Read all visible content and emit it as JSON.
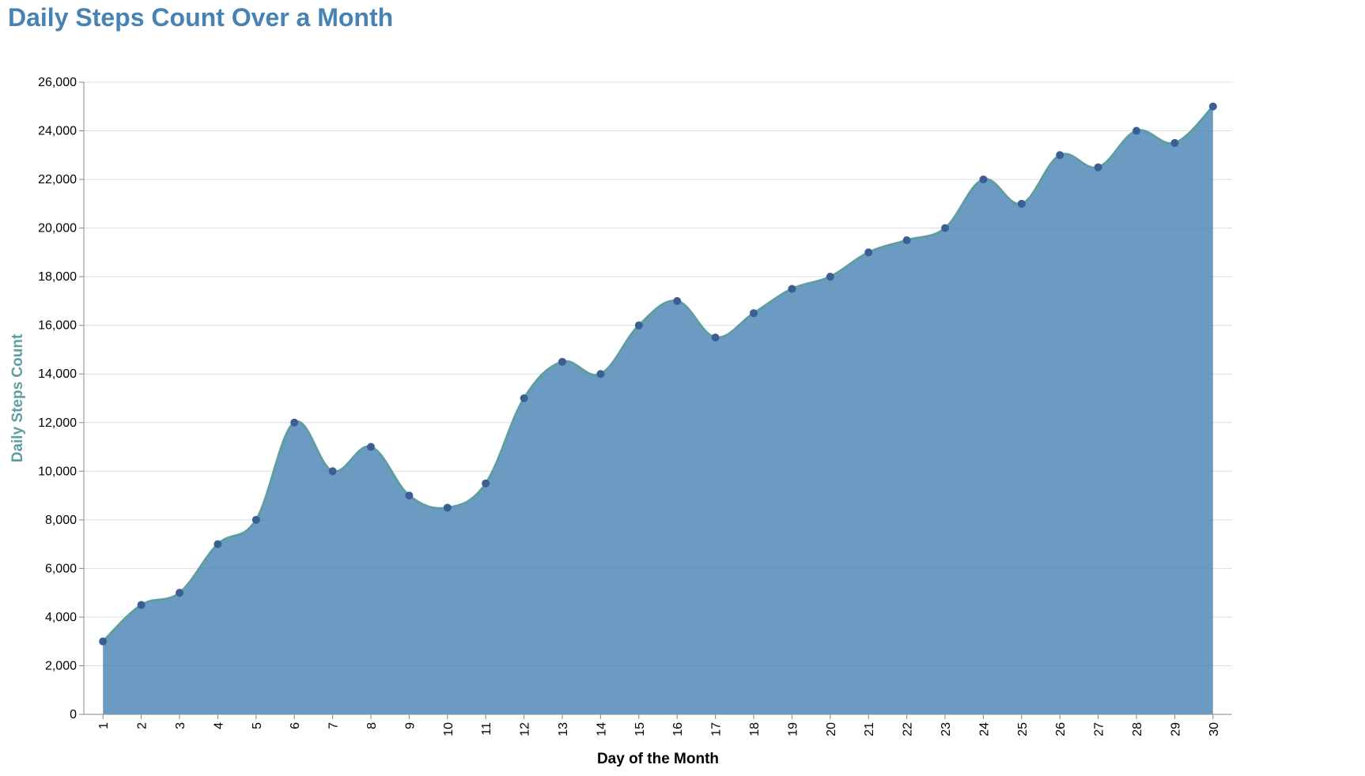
{
  "chart_data": {
    "type": "area",
    "title": "Daily Steps Count Over a Month",
    "xlabel": "Day of the Month",
    "ylabel": "Daily Steps Count",
    "x": [
      1,
      2,
      3,
      4,
      5,
      6,
      7,
      8,
      9,
      10,
      11,
      12,
      13,
      14,
      15,
      16,
      17,
      18,
      19,
      20,
      21,
      22,
      23,
      24,
      25,
      26,
      27,
      28,
      29,
      30
    ],
    "values": [
      3000,
      4500,
      5000,
      7000,
      8000,
      12000,
      10000,
      11000,
      9000,
      8500,
      9500,
      13000,
      14500,
      14000,
      16000,
      17000,
      15500,
      16500,
      17500,
      18000,
      19000,
      19500,
      20000,
      22000,
      21000,
      23000,
      22500,
      24000,
      23500,
      25000
    ],
    "ylim": [
      0,
      26000
    ],
    "yticks": [
      0,
      2000,
      4000,
      6000,
      8000,
      10000,
      12000,
      14000,
      16000,
      18000,
      20000,
      22000,
      24000,
      26000
    ],
    "grid": true,
    "colors": {
      "area": "#4682b4",
      "line": "#5f9ea0",
      "points": "#3b5f93",
      "title": "#4682b4",
      "ylabel": "#5f9ea0",
      "grid": "#dddddd",
      "axis": "#888888"
    }
  }
}
